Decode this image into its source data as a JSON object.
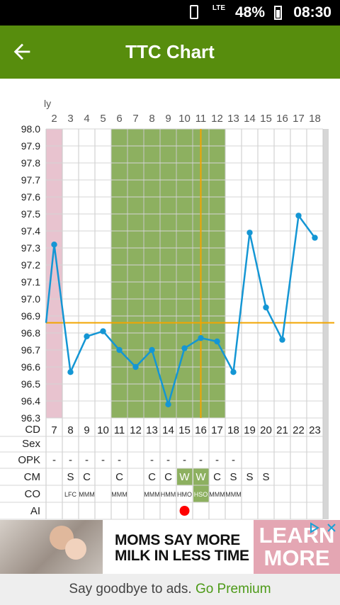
{
  "status_bar": {
    "network": "LTE",
    "battery": "48%",
    "time": "08:30"
  },
  "app_bar": {
    "title": "TTC Chart"
  },
  "chart": {
    "month_label": "ly",
    "days": [
      "2",
      "3",
      "4",
      "5",
      "6",
      "7",
      "8",
      "9",
      "10",
      "11",
      "12",
      "13",
      "14",
      "15",
      "16",
      "17",
      "18"
    ],
    "cycle_days": [
      "7",
      "8",
      "9",
      "10",
      "11",
      "12",
      "13",
      "14",
      "15",
      "16",
      "17",
      "18",
      "19",
      "20",
      "21",
      "22",
      "23"
    ],
    "row_labels": {
      "cd": "CD",
      "sex": "Sex",
      "opk": "OPK",
      "cm": "CM",
      "co": "CO",
      "ai": "AI"
    },
    "opk": [
      "-",
      "-",
      "-",
      "-",
      "-",
      "",
      "-",
      "-",
      "-",
      "-",
      "-",
      "-",
      "",
      "",
      "",
      "",
      ""
    ],
    "cm": [
      "",
      "S",
      "C",
      "",
      "C",
      "",
      "C",
      "C",
      "W",
      "W",
      "C",
      "S",
      "S",
      "S",
      "",
      "",
      ""
    ],
    "co": [
      "",
      "LFC",
      "MMM",
      "",
      "MMM",
      "",
      "MMM",
      "HMM",
      "HMO",
      "HSO",
      "MMM",
      "MMM",
      "",
      "",
      "",
      "",
      ""
    ],
    "ai": [
      false,
      false,
      false,
      false,
      false,
      false,
      false,
      false,
      true,
      false,
      false,
      false,
      false,
      false,
      false,
      false,
      false
    ],
    "colors": {
      "menstruation": "#e8c3cf",
      "fertile": "#8db060",
      "line": "#1496d4",
      "coverline": "#f2a500",
      "cm_highlight": "#8db060",
      "ai_dot": "#ff0000"
    }
  },
  "chart_data": {
    "type": "line",
    "x": [
      "2",
      "3",
      "4",
      "5",
      "6",
      "7",
      "8",
      "9",
      "10",
      "11",
      "12",
      "13",
      "14",
      "15",
      "16",
      "17",
      "18"
    ],
    "series": [
      {
        "values": [
          97.32,
          96.57,
          96.78,
          96.81,
          96.7,
          96.6,
          96.7,
          96.38,
          96.71,
          96.77,
          96.75,
          96.57,
          97.39,
          96.95,
          96.76,
          97.49,
          97.36
        ]
      }
    ],
    "ylim": [
      96.3,
      98.0
    ],
    "y_ticks": [
      "98.0",
      "97.9",
      "97.8",
      "97.7",
      "97.6",
      "97.5",
      "97.4",
      "97.3",
      "97.2",
      "97.1",
      "97.0",
      "96.9",
      "96.8",
      "96.7",
      "96.6",
      "96.5",
      "96.4",
      "96.3"
    ],
    "coverline": 96.86,
    "ovulation_day": "11",
    "fertile_days": [
      "6",
      "7",
      "8",
      "9",
      "10",
      "11",
      "12"
    ],
    "period_days": [
      "2"
    ],
    "grid": true
  },
  "ad": {
    "headline": "MOMS SAY MORE MILK IN LESS TIME",
    "cta": "LEARN MORE",
    "icons": [
      "adchoices-icon",
      "close-icon"
    ]
  },
  "footer": {
    "text": "Say goodbye to ads.",
    "link": "Go Premium"
  }
}
